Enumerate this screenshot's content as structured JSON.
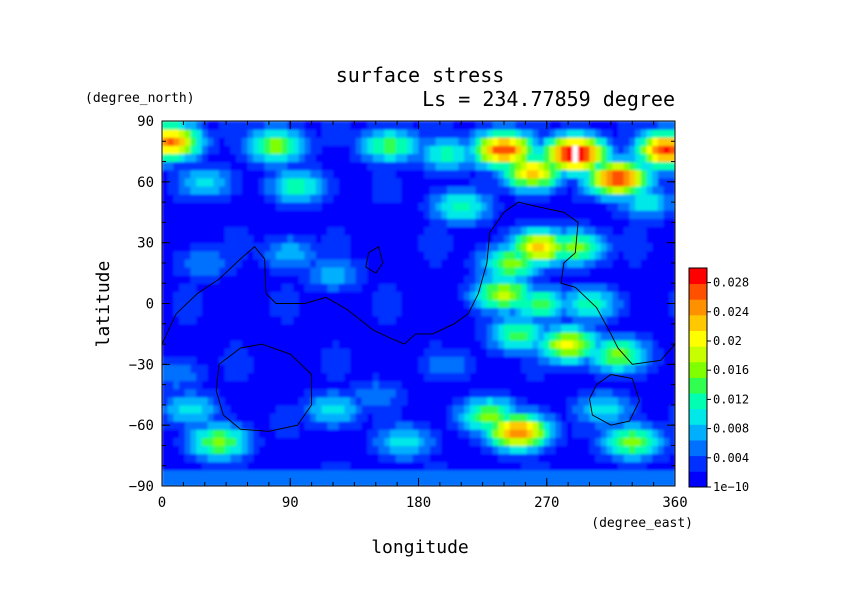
{
  "chart_data": {
    "type": "heatmap",
    "title": "surface stress",
    "subtitle": "Ls = 234.77859 degree",
    "xlabel": "longitude",
    "ylabel": "latitude",
    "x_unit": "(degree_east)",
    "y_unit": "(degree_north)",
    "xlim": [
      0,
      360
    ],
    "ylim": [
      -90,
      90
    ],
    "x_ticks": [
      "0",
      "90",
      "180",
      "270",
      "360"
    ],
    "y_ticks": [
      "90",
      "60",
      "30",
      "0",
      "−30",
      "−60",
      "−90"
    ],
    "colorbar": {
      "min": 0,
      "max": 0.03,
      "labels": [
        "1e−10",
        "0.004",
        "0.008",
        "0.012",
        "0.016",
        "0.02",
        "0.024",
        "0.028"
      ],
      "colors": [
        "#0000ff",
        "#0030ff",
        "#0070ff",
        "#00b0ff",
        "#00e8e8",
        "#00ffb0",
        "#30ff50",
        "#80ff00",
        "#c8ff00",
        "#ffff00",
        "#ffc800",
        "#ff9000",
        "#ff5000",
        "#ff0000"
      ],
      "saturation_color": "#ffffff"
    },
    "hotspots": [
      {
        "lon": 5,
        "lat": 80,
        "value": 0.026
      },
      {
        "lon": 80,
        "lat": 78,
        "value": 0.016
      },
      {
        "lon": 160,
        "lat": 78,
        "value": 0.014
      },
      {
        "lon": 200,
        "lat": 74,
        "value": 0.012
      },
      {
        "lon": 240,
        "lat": 76,
        "value": 0.028
      },
      {
        "lon": 290,
        "lat": 74,
        "value": 0.032
      },
      {
        "lon": 355,
        "lat": 76,
        "value": 0.028
      },
      {
        "lon": 320,
        "lat": 62,
        "value": 0.028
      },
      {
        "lon": 260,
        "lat": 65,
        "value": 0.022
      },
      {
        "lon": 95,
        "lat": 58,
        "value": 0.012
      },
      {
        "lon": 30,
        "lat": 60,
        "value": 0.009
      },
      {
        "lon": 210,
        "lat": 48,
        "value": 0.012
      },
      {
        "lon": 265,
        "lat": 28,
        "value": 0.022
      },
      {
        "lon": 245,
        "lat": 20,
        "value": 0.016
      },
      {
        "lon": 290,
        "lat": 28,
        "value": 0.016
      },
      {
        "lon": 240,
        "lat": 5,
        "value": 0.018
      },
      {
        "lon": 265,
        "lat": 0,
        "value": 0.014
      },
      {
        "lon": 300,
        "lat": 0,
        "value": 0.012
      },
      {
        "lon": 250,
        "lat": -15,
        "value": 0.014
      },
      {
        "lon": 285,
        "lat": -20,
        "value": 0.02
      },
      {
        "lon": 320,
        "lat": -25,
        "value": 0.016
      },
      {
        "lon": 90,
        "lat": 25,
        "value": 0.008
      },
      {
        "lon": 120,
        "lat": 15,
        "value": 0.008
      },
      {
        "lon": 30,
        "lat": 20,
        "value": 0.006
      },
      {
        "lon": 150,
        "lat": -45,
        "value": 0.006
      },
      {
        "lon": 20,
        "lat": -52,
        "value": 0.01
      },
      {
        "lon": 120,
        "lat": -52,
        "value": 0.01
      },
      {
        "lon": 40,
        "lat": -68,
        "value": 0.016
      },
      {
        "lon": 250,
        "lat": -63,
        "value": 0.026
      },
      {
        "lon": 230,
        "lat": -55,
        "value": 0.016
      },
      {
        "lon": 330,
        "lat": -68,
        "value": 0.016
      },
      {
        "lon": 170,
        "lat": -68,
        "value": 0.01
      },
      {
        "lon": 310,
        "lat": -52,
        "value": 0.01
      },
      {
        "lon": 340,
        "lat": 50,
        "value": 0.01
      },
      {
        "lon": 10,
        "lat": -35,
        "value": 0.006
      },
      {
        "lon": 200,
        "lat": -30,
        "value": 0.006
      }
    ],
    "topography_contours": [
      [
        [
          0,
          -20
        ],
        [
          10,
          -5
        ],
        [
          25,
          5
        ],
        [
          40,
          12
        ],
        [
          55,
          22
        ],
        [
          65,
          28
        ],
        [
          72,
          22
        ],
        [
          73,
          5
        ],
        [
          80,
          0
        ],
        [
          100,
          0
        ],
        [
          115,
          3
        ],
        [
          130,
          -3
        ],
        [
          148,
          -13
        ],
        [
          160,
          -17
        ],
        [
          170,
          -20
        ],
        [
          178,
          -15
        ],
        [
          190,
          -15
        ],
        [
          205,
          -10
        ],
        [
          215,
          -5
        ],
        [
          222,
          5
        ],
        [
          228,
          20
        ],
        [
          230,
          35
        ],
        [
          240,
          45
        ],
        [
          250,
          50
        ],
        [
          262,
          48
        ],
        [
          282,
          45
        ],
        [
          292,
          40
        ],
        [
          290,
          25
        ],
        [
          282,
          20
        ],
        [
          280,
          10
        ],
        [
          290,
          8
        ],
        [
          305,
          -2
        ],
        [
          315,
          -15
        ],
        [
          320,
          -22
        ],
        [
          330,
          -30
        ],
        [
          350,
          -28
        ],
        [
          360,
          -20
        ]
      ],
      [
        [
          40,
          -30
        ],
        [
          55,
          -22
        ],
        [
          70,
          -20
        ],
        [
          90,
          -25
        ],
        [
          105,
          -35
        ],
        [
          105,
          -50
        ],
        [
          95,
          -60
        ],
        [
          75,
          -63
        ],
        [
          55,
          -62
        ],
        [
          43,
          -55
        ],
        [
          38,
          -43
        ],
        [
          40,
          -30
        ]
      ],
      [
        [
          145,
          25
        ],
        [
          152,
          28
        ],
        [
          155,
          20
        ],
        [
          150,
          15
        ],
        [
          143,
          18
        ],
        [
          145,
          25
        ]
      ],
      [
        [
          305,
          -40
        ],
        [
          315,
          -35
        ],
        [
          330,
          -37
        ],
        [
          335,
          -48
        ],
        [
          328,
          -58
        ],
        [
          315,
          -60
        ],
        [
          302,
          -55
        ],
        [
          300,
          -47
        ],
        [
          305,
          -40
        ]
      ]
    ]
  }
}
